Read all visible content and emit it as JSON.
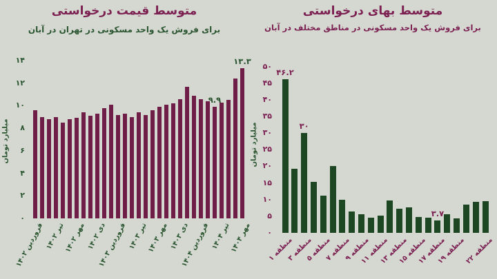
{
  "page": {
    "background": "#d4d8d1"
  },
  "chart_data": [
    {
      "type": "bar",
      "title": "متوسط قیمت درخواستی",
      "subtitle": "برای فروش یک واحد مسکونی در تهران در آبان",
      "ylabel": "میلیارد تومان",
      "ylim": [
        0,
        14
      ],
      "grid": false,
      "legend": "none",
      "title_color": "#7c2052",
      "subtitle_color": "#2a5530",
      "bar_color": "#6e1e46",
      "tick_color": "#2a5530",
      "ylabel_color": "#2a5530",
      "yticks": [
        {
          "v": 0,
          "t": "۰"
        },
        {
          "v": 2,
          "t": "۲"
        },
        {
          "v": 4,
          "t": "۴"
        },
        {
          "v": 6,
          "t": "۶"
        },
        {
          "v": 8,
          "t": "۸"
        },
        {
          "v": 10,
          "t": "۱۰"
        },
        {
          "v": 12,
          "t": "۱۲"
        },
        {
          "v": 14,
          "t": "۱۴"
        }
      ],
      "values": [
        9.6,
        9.0,
        8.8,
        9.0,
        8.5,
        8.8,
        8.9,
        9.4,
        9.1,
        9.3,
        9.8,
        10.1,
        9.2,
        9.3,
        9.0,
        9.4,
        9.2,
        9.6,
        9.9,
        10.1,
        10.2,
        10.6,
        11.7,
        10.9,
        10.6,
        10.4,
        9.9,
        10.3,
        10.5,
        12.4,
        13.3
      ],
      "xticks": [
        {
          "i": 0,
          "t": "فروردین ۱۴۰۲"
        },
        {
          "i": 3,
          "t": "تیر ۱۴۰۲"
        },
        {
          "i": 6,
          "t": "مهر ۱۴۰۲"
        },
        {
          "i": 9,
          "t": "دی ۱۴۰۲"
        },
        {
          "i": 12,
          "t": "فروردین ۱۴۰۳"
        },
        {
          "i": 15,
          "t": "تیر ۱۴۰۳"
        },
        {
          "i": 18,
          "t": "مهر ۱۴۰۳"
        },
        {
          "i": 21,
          "t": "دی ۱۴۰۳"
        },
        {
          "i": 24,
          "t": "فروردین ۱۴۰۴"
        },
        {
          "i": 27,
          "t": "تیر ۱۴۰۴"
        },
        {
          "i": 30,
          "t": "مهر ۱۴۰۴"
        }
      ],
      "annotations": [
        {
          "i": 26,
          "t": "۹.۹"
        },
        {
          "i": 30,
          "t": "۱۳.۳"
        }
      ]
    },
    {
      "type": "bar",
      "title": "متوسط بهای درخواستی",
      "subtitle": "برای فروش یک واحد مسکونی در مناطق مختلف در آبان",
      "ylabel": "میلیارد تومان",
      "ylim": [
        0,
        50
      ],
      "grid": false,
      "legend": "none",
      "title_color": "#7c2052",
      "subtitle_color": "#7c2052",
      "bar_color": "#1d4722",
      "tick_color": "#7c2052",
      "ylabel_color": "#2a5530",
      "yticks": [
        {
          "v": 0,
          "t": "۰"
        },
        {
          "v": 5,
          "t": "۵"
        },
        {
          "v": 10,
          "t": "۱۰"
        },
        {
          "v": 15,
          "t": "۱۵"
        },
        {
          "v": 20,
          "t": "۲۰"
        },
        {
          "v": 25,
          "t": "۲۵"
        },
        {
          "v": 30,
          "t": "۳۰"
        },
        {
          "v": 35,
          "t": "۳۵"
        },
        {
          "v": 40,
          "t": "۴۰"
        },
        {
          "v": 45,
          "t": "۴۵"
        },
        {
          "v": 50,
          "t": "۵۰"
        }
      ],
      "values": [
        46.2,
        19.3,
        30.0,
        15.3,
        11.2,
        20.2,
        10.0,
        6.5,
        5.6,
        4.6,
        5.2,
        9.8,
        7.2,
        7.7,
        4.8,
        4.5,
        3.7,
        5.5,
        4.3,
        8.4,
        9.3,
        9.6
      ],
      "xticks": [
        {
          "i": 0,
          "t": "منطقه ۱"
        },
        {
          "i": 2,
          "t": "منطقه ۳"
        },
        {
          "i": 4,
          "t": "منطقه ۵"
        },
        {
          "i": 6,
          "t": "منطقه ۷"
        },
        {
          "i": 8,
          "t": "منطقه ۹"
        },
        {
          "i": 10,
          "t": "منطقه ۱۱"
        },
        {
          "i": 12,
          "t": "منطقه ۱۳"
        },
        {
          "i": 14,
          "t": "منطقه ۱۵"
        },
        {
          "i": 16,
          "t": "منطقه ۱۷"
        },
        {
          "i": 18,
          "t": "منطقه ۱۹"
        },
        {
          "i": 21,
          "t": "منطقه ۲۲"
        }
      ],
      "annotations": [
        {
          "i": 0,
          "t": "۴۶.۲"
        },
        {
          "i": 2,
          "t": "۳۰"
        },
        {
          "i": 16,
          "t": "۳.۷"
        }
      ]
    }
  ]
}
